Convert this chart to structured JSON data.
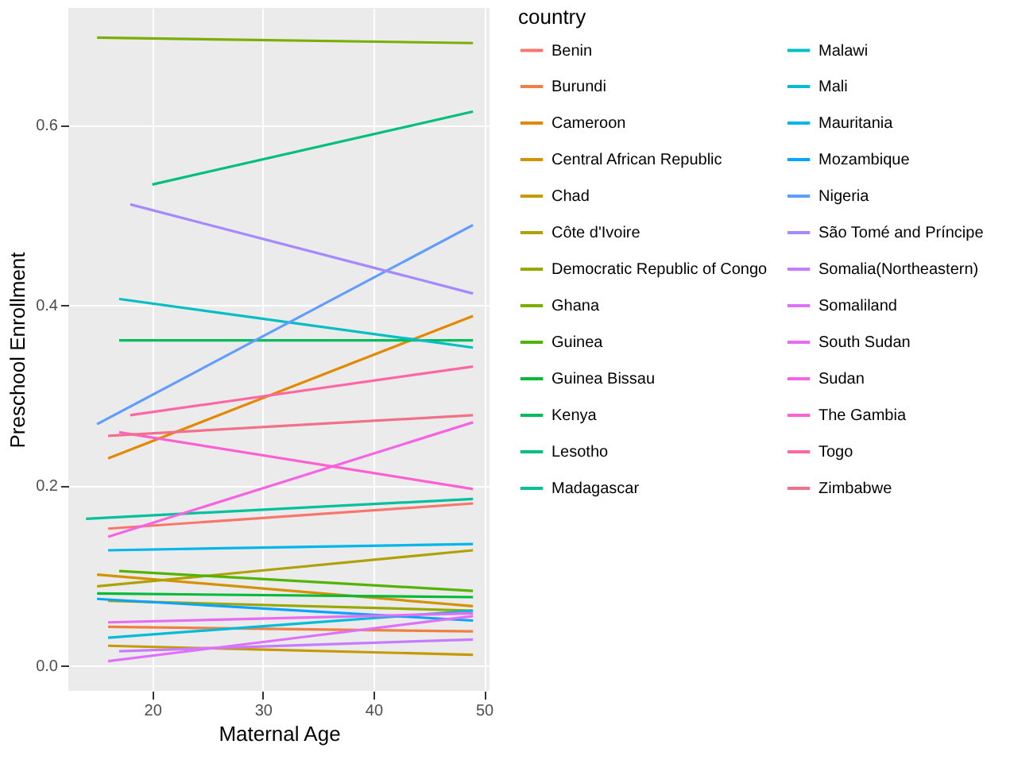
{
  "chart_data": {
    "type": "line",
    "xlabel": "Maternal Age",
    "ylabel": "Preschool Enrollment",
    "legend_title": "country",
    "legend": "right",
    "grid": true,
    "line_style": "solid",
    "marker": "none",
    "xlim": [
      12.4,
      50.5
    ],
    "xticks": [
      20,
      30,
      40,
      50
    ],
    "ylim": [
      -0.028,
      0.73
    ],
    "yticks": [
      {
        "value": 0,
        "label": "0.0"
      },
      0.2,
      0.4,
      0.6
    ],
    "series": [
      {
        "name": "Benin",
        "color": "#F8766D",
        "x": [
          16,
          49
        ],
        "values": [
          0.152,
          0.18
        ]
      },
      {
        "name": "Burundi",
        "color": "#EE8044",
        "x": [
          16,
          49
        ],
        "values": [
          0.043,
          0.038
        ]
      },
      {
        "name": "Cameroon",
        "color": "#E38900",
        "x": [
          16,
          49
        ],
        "values": [
          0.23,
          0.388
        ]
      },
      {
        "name": "Central African Republic",
        "color": "#D49200",
        "x": [
          15,
          49
        ],
        "values": [
          0.101,
          0.066
        ]
      },
      {
        "name": "Chad",
        "color": "#C49A00",
        "x": [
          16,
          49
        ],
        "values": [
          0.022,
          0.012
        ]
      },
      {
        "name": "Côte d'Ivoire",
        "color": "#AFA100",
        "x": [
          15,
          49
        ],
        "values": [
          0.088,
          0.128
        ]
      },
      {
        "name": "Democratic Republic of Congo",
        "color": "#99A800",
        "x": [
          16,
          49
        ],
        "values": [
          0.072,
          0.061
        ]
      },
      {
        "name": "Ghana",
        "color": "#7CAE00",
        "x": [
          15,
          49
        ],
        "values": [
          0.697,
          0.691
        ]
      },
      {
        "name": "Guinea",
        "color": "#53B400",
        "x": [
          17,
          49
        ],
        "values": [
          0.105,
          0.083
        ]
      },
      {
        "name": "Guinea Bissau",
        "color": "#00BA38",
        "x": [
          15,
          49
        ],
        "values": [
          0.08,
          0.076
        ]
      },
      {
        "name": "Kenya",
        "color": "#00BD5C",
        "x": [
          17,
          49
        ],
        "values": [
          0.361,
          0.361
        ]
      },
      {
        "name": "Lesotho",
        "color": "#00BF7D",
        "x": [
          20,
          49
        ],
        "values": [
          0.534,
          0.615
        ]
      },
      {
        "name": "Madagascar",
        "color": "#00C19C",
        "x": [
          14,
          49
        ],
        "values": [
          0.163,
          0.185
        ]
      },
      {
        "name": "Malawi",
        "color": "#00BFC4",
        "x": [
          17,
          49
        ],
        "values": [
          0.407,
          0.353
        ]
      },
      {
        "name": "Mali",
        "color": "#00BCD8",
        "x": [
          16,
          49
        ],
        "values": [
          0.031,
          0.061
        ]
      },
      {
        "name": "Mauritania",
        "color": "#00B6EB",
        "x": [
          16,
          49
        ],
        "values": [
          0.128,
          0.135
        ]
      },
      {
        "name": "Mozambique",
        "color": "#06A4FF",
        "x": [
          15,
          49
        ],
        "values": [
          0.074,
          0.05
        ]
      },
      {
        "name": "Nigeria",
        "color": "#619CFF",
        "x": [
          15,
          49
        ],
        "values": [
          0.268,
          0.489
        ]
      },
      {
        "name": "São Tomé and Príncipe",
        "color": "#A58AFF",
        "x": [
          18,
          49
        ],
        "values": [
          0.512,
          0.413
        ]
      },
      {
        "name": "Somalia(Northeastern)",
        "color": "#C77CFF",
        "x": [
          17,
          49
        ],
        "values": [
          0.016,
          0.029
        ]
      },
      {
        "name": "Somaliland",
        "color": "#DF70F8",
        "x": [
          16,
          49
        ],
        "values": [
          0.005,
          0.055
        ]
      },
      {
        "name": "South Sudan",
        "color": "#E76BF3",
        "x": [
          16,
          49
        ],
        "values": [
          0.048,
          0.058
        ]
      },
      {
        "name": "Sudan",
        "color": "#F564E3",
        "x": [
          16,
          49
        ],
        "values": [
          0.143,
          0.27
        ]
      },
      {
        "name": "The Gambia",
        "color": "#FD61D1",
        "x": [
          17,
          49
        ],
        "values": [
          0.259,
          0.196
        ]
      },
      {
        "name": "Togo",
        "color": "#FF67A4",
        "x": [
          18,
          49
        ],
        "values": [
          0.278,
          0.332
        ]
      },
      {
        "name": "Zimbabwe",
        "color": "#F2718A",
        "x": [
          16,
          49
        ],
        "values": [
          0.255,
          0.278
        ]
      }
    ]
  }
}
